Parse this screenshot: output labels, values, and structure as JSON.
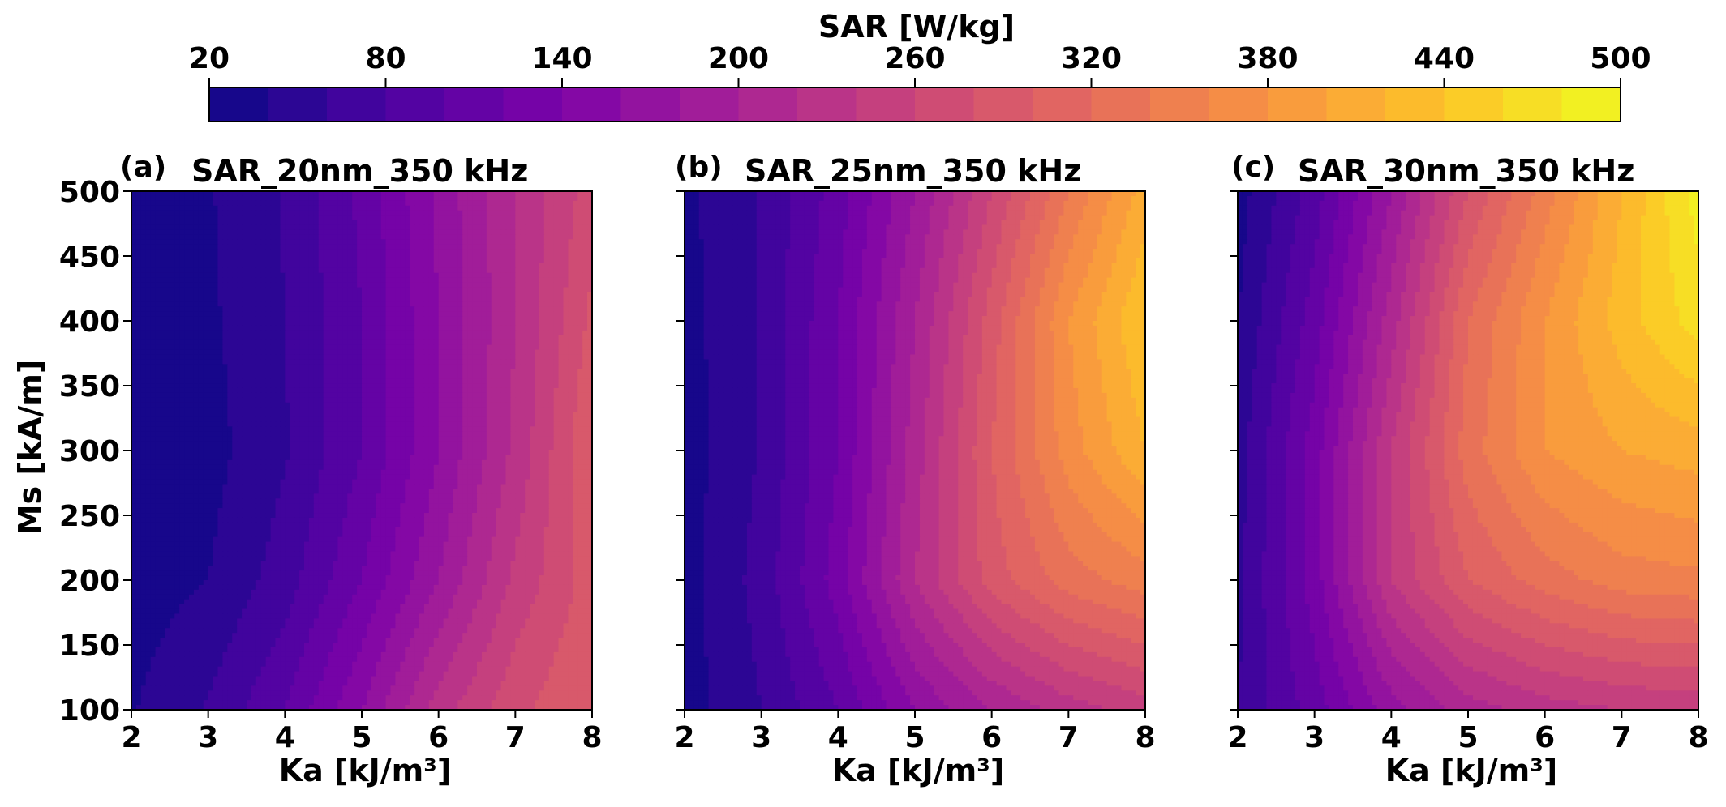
{
  "colorbar": {
    "label": "SAR [W/kg]",
    "min": 20,
    "max": 500,
    "levels": 24,
    "ticks": [
      "20",
      "80",
      "140",
      "200",
      "260",
      "320",
      "380",
      "440",
      "500"
    ],
    "colormap": "plasma"
  },
  "chart_data": [
    {
      "type": "heatmap",
      "panel_label": "(a)",
      "title": "SAR_20nm_350 kHz",
      "xlabel": "Ka [kJ/m³]",
      "ylabel": "Ms [kA/m]",
      "xlim": [
        2,
        8
      ],
      "ylim": [
        100,
        500
      ],
      "xticks": [
        "2",
        "3",
        "4",
        "5",
        "6",
        "7",
        "8"
      ],
      "yticks": [
        "100",
        "150",
        "200",
        "250",
        "300",
        "350",
        "400",
        "450",
        "500"
      ],
      "x": [
        2,
        3,
        4,
        5,
        6,
        7,
        8
      ],
      "y": [
        100,
        200,
        300,
        400,
        500
      ],
      "z": [
        [
          38,
          62,
          100,
          160,
          230,
          275,
          300
        ],
        [
          30,
          40,
          70,
          120,
          180,
          245,
          290
        ],
        [
          26,
          32,
          58,
          100,
          160,
          225,
          300
        ],
        [
          30,
          36,
          60,
          100,
          160,
          220,
          285
        ],
        [
          32,
          38,
          62,
          105,
          165,
          220,
          270
        ]
      ]
    },
    {
      "type": "heatmap",
      "panel_label": "(b)",
      "title": "SAR_25nm_350 kHz",
      "xlabel": "Ka [kJ/m³]",
      "ylabel": "",
      "xlim": [
        2,
        8
      ],
      "ylim": [
        100,
        500
      ],
      "xticks": [
        "2",
        "3",
        "4",
        "5",
        "6",
        "7",
        "8"
      ],
      "yticks": [],
      "x": [
        2,
        3,
        4,
        5,
        6,
        7,
        8
      ],
      "y": [
        100,
        200,
        300,
        400,
        500
      ],
      "z": [
        [
          30,
          60,
          100,
          160,
          200,
          230,
          250
        ],
        [
          32,
          68,
          130,
          220,
          290,
          330,
          350
        ],
        [
          30,
          62,
          120,
          210,
          300,
          370,
          420
        ],
        [
          32,
          62,
          120,
          200,
          290,
          380,
          440
        ],
        [
          35,
          62,
          110,
          180,
          260,
          340,
          410
        ]
      ]
    },
    {
      "type": "heatmap",
      "panel_label": "(c)",
      "title": "SAR_30nm_350 kHz",
      "xlabel": "Ka [kJ/m³]",
      "ylabel": "",
      "xlim": [
        2,
        8
      ],
      "ylim": [
        100,
        500
      ],
      "xticks": [
        "2",
        "3",
        "4",
        "5",
        "6",
        "7",
        "8"
      ],
      "yticks": [],
      "x": [
        2,
        3,
        4,
        5,
        6,
        7,
        8
      ],
      "y": [
        100,
        200,
        300,
        400,
        500
      ],
      "z": [
        [
          60,
          110,
          170,
          210,
          230,
          240,
          245
        ],
        [
          55,
          130,
          240,
          300,
          330,
          350,
          355
        ],
        [
          50,
          130,
          240,
          330,
          380,
          400,
          410
        ],
        [
          40,
          110,
          210,
          320,
          380,
          430,
          470
        ],
        [
          30,
          90,
          180,
          280,
          350,
          420,
          490
        ]
      ]
    }
  ]
}
